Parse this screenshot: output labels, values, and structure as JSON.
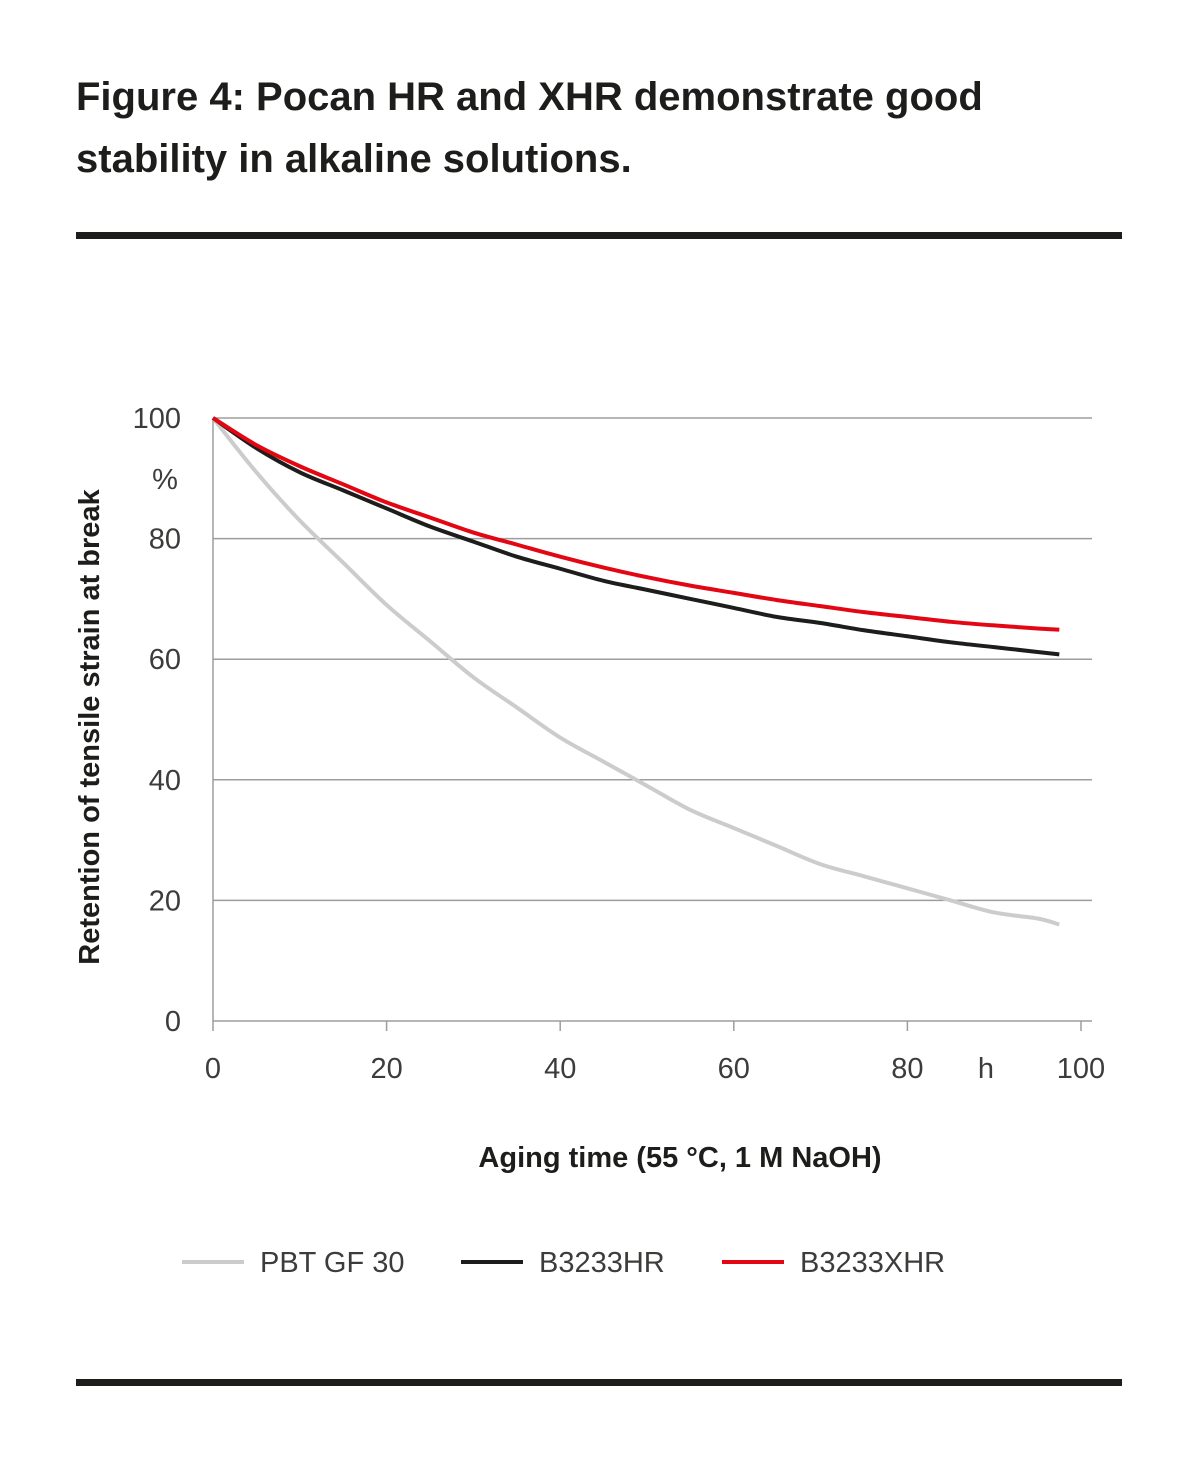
{
  "title": "Figure 4: Pocan HR and XHR demonstrate good stability in alkaline solutions.",
  "chart_data": {
    "type": "line",
    "title": "Figure 4: Pocan HR and XHR demonstrate good stability in alkaline solutions.",
    "xlabel": "Aging time (55 °C, 1 M NaOH)",
    "ylabel": "Retention of tensile strain at break",
    "x_unit": "h",
    "y_unit": "%",
    "xlim": [
      0,
      100
    ],
    "ylim": [
      0,
      100
    ],
    "x_ticks": [
      0,
      20,
      40,
      60,
      80,
      100
    ],
    "y_ticks": [
      0,
      20,
      40,
      60,
      80,
      100
    ],
    "grid": true,
    "legend_position": "bottom",
    "series": [
      {
        "name": "PBT GF 30",
        "color": "#cccccc",
        "x": [
          0,
          5,
          10,
          15,
          20,
          25,
          30,
          35,
          40,
          45,
          50,
          55,
          60,
          65,
          70,
          75,
          80,
          85,
          90,
          95,
          97.5
        ],
        "y": [
          100,
          91,
          83,
          76,
          69,
          63,
          57,
          52,
          47,
          43,
          39,
          35,
          32,
          29,
          26,
          24,
          22,
          20,
          18,
          17,
          16
        ]
      },
      {
        "name": "B3233HR",
        "color": "#1d1d1b",
        "x": [
          0,
          5,
          10,
          15,
          20,
          25,
          30,
          35,
          40,
          45,
          50,
          55,
          60,
          65,
          70,
          75,
          80,
          85,
          90,
          95,
          97.5
        ],
        "y": [
          100,
          95,
          91,
          88,
          85,
          82,
          79.5,
          77,
          75,
          73,
          71.5,
          70,
          68.5,
          67,
          66,
          64.8,
          63.8,
          62.8,
          62,
          61.2,
          60.8
        ]
      },
      {
        "name": "B3233XHR",
        "color": "#e30613",
        "x": [
          0,
          5,
          10,
          15,
          20,
          25,
          30,
          35,
          40,
          45,
          50,
          55,
          60,
          65,
          70,
          75,
          80,
          85,
          90,
          95,
          97.5
        ],
        "y": [
          100,
          95.5,
          92,
          89,
          86,
          83.5,
          81,
          79,
          77,
          75.2,
          73.6,
          72.2,
          71,
          69.8,
          68.8,
          67.8,
          67,
          66.2,
          65.6,
          65.1,
          64.9
        ]
      }
    ]
  }
}
